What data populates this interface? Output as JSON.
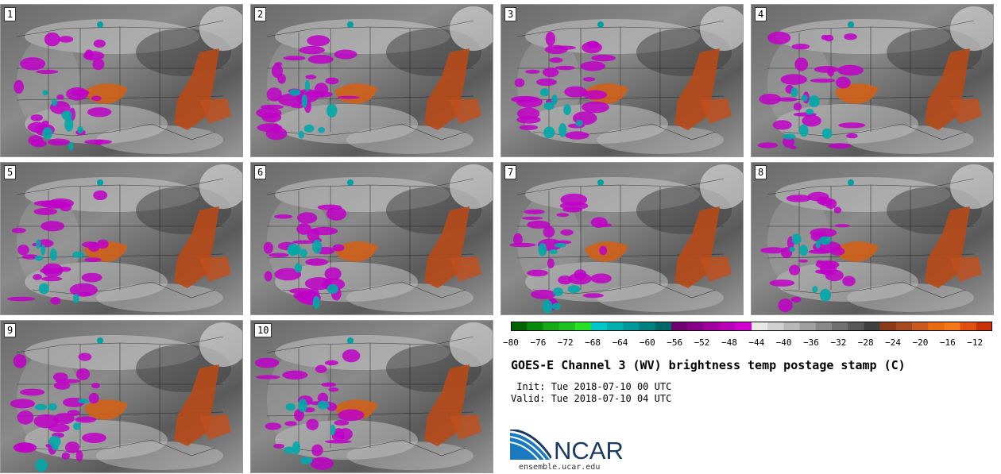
{
  "panels": [
    "1",
    "2",
    "3",
    "4",
    "5",
    "6",
    "7",
    "8",
    "9",
    "10"
  ],
  "colorbar": {
    "colors": [
      "#006400",
      "#0a8a0a",
      "#18a818",
      "#20c020",
      "#28e028",
      "#00c8c8",
      "#00b0b0",
      "#009898",
      "#008080",
      "#006868",
      "#700070",
      "#880088",
      "#a000a0",
      "#b800b8",
      "#d000d0",
      "#e8e8e8",
      "#d0d0d0",
      "#b8b8b8",
      "#a0a0a0",
      "#888888",
      "#707070",
      "#585858",
      "#404040",
      "#8b3a1a",
      "#a84a20",
      "#c85a20",
      "#e86a10",
      "#f07818",
      "#e05010",
      "#c83008"
    ],
    "tick_labels": [
      "−80",
      "−76",
      "−72",
      "−68",
      "−64",
      "−60",
      "−56",
      "−52",
      "−48",
      "−44",
      "−40",
      "−36",
      "−32",
      "−28",
      "−24",
      "−20",
      "−16",
      "−12"
    ]
  },
  "title": "GOES-E Channel 3 (WV) brightness temp postage stamp (C)",
  "init_line": " Init: Tue 2018-07-10 00 UTC",
  "valid_line": "Valid: Tue 2018-07-10 04 UTC",
  "logo": {
    "text": "NCAR",
    "color": "#1a3a66",
    "accent": "#1a7abf"
  },
  "site": "ensemble.ucar.edu"
}
